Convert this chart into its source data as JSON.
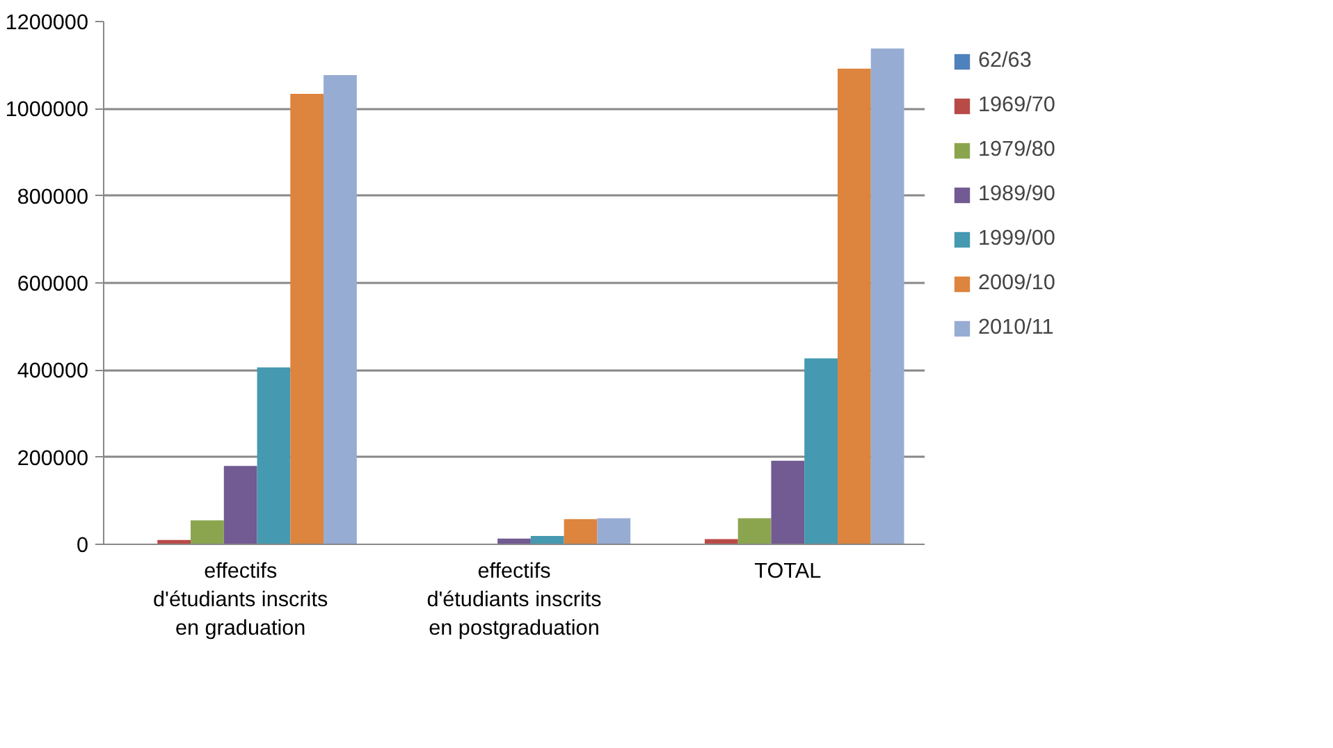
{
  "chart_data": {
    "type": "bar",
    "categories": [
      "effectifs d'étudiants inscrits en graduation",
      "effectifs d'étudiants inscrits en postgraduation",
      "TOTAL"
    ],
    "series": [
      {
        "name": "62/63",
        "color": "#4f81bd",
        "values": [
          null,
          null,
          null
        ]
      },
      {
        "name": "1969/70",
        "color": "#b84a47",
        "values": [
          10000,
          null,
          12000
        ]
      },
      {
        "name": "1979/80",
        "color": "#8ba54f",
        "values": [
          55000,
          null,
          60000
        ]
      },
      {
        "name": "1989/90",
        "color": "#725a92",
        "values": [
          180000,
          13000,
          192000
        ]
      },
      {
        "name": "1999/00",
        "color": "#4599b0",
        "values": [
          406000,
          19000,
          427000
        ]
      },
      {
        "name": "2009/10",
        "color": "#dd843e",
        "values": [
          1034000,
          58000,
          1092000
        ]
      },
      {
        "name": "2010/11",
        "color": "#97acd3",
        "values": [
          1077000,
          60000,
          1138000
        ]
      }
    ],
    "ylim": [
      0,
      1200000
    ],
    "yticks": [
      0,
      200000,
      400000,
      600000,
      800000,
      1000000,
      1200000
    ],
    "grid": "y",
    "legend": "right"
  }
}
